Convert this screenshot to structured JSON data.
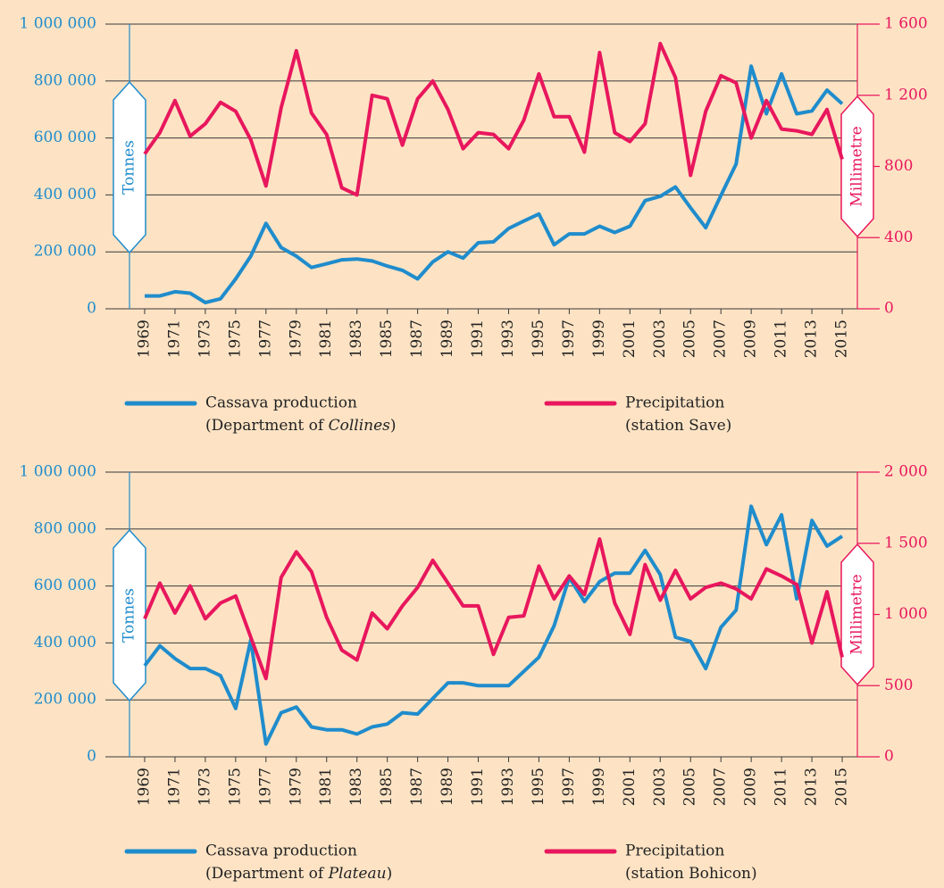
{
  "chart_data": [
    {
      "type": "line",
      "ylabel": "Tonnes",
      "y2label": "Millimetre",
      "x": [
        1969,
        1970,
        1971,
        1972,
        1973,
        1974,
        1975,
        1976,
        1977,
        1978,
        1979,
        1980,
        1981,
        1982,
        1983,
        1984,
        1985,
        1986,
        1987,
        1988,
        1989,
        1990,
        1991,
        1992,
        1993,
        1994,
        1995,
        1996,
        1997,
        1998,
        1999,
        2000,
        2001,
        2002,
        2003,
        2004,
        2005,
        2006,
        2007,
        2008,
        2009,
        2010,
        2011,
        2012,
        2013,
        2014,
        2015
      ],
      "xlim": [
        1968,
        2016
      ],
      "xticks": [
        1969,
        1971,
        1973,
        1975,
        1977,
        1979,
        1981,
        1983,
        1985,
        1987,
        1989,
        1991,
        1993,
        1995,
        1997,
        1999,
        2001,
        2003,
        2005,
        2007,
        2009,
        2011,
        2013,
        2015
      ],
      "ylim": [
        0,
        1000000
      ],
      "yticks": [
        0,
        {
          "value": 200000,
          "label": "200 000"
        },
        {
          "value": 400000,
          "label": "400 000"
        },
        {
          "value": 600000,
          "label": "600 000"
        },
        {
          "value": 800000,
          "label": "800 000"
        },
        {
          "value": 1000000,
          "label": "1 000 000"
        }
      ],
      "y2lim": [
        0,
        1600
      ],
      "y2ticks": [
        0,
        400,
        800,
        {
          "value": 1200,
          "label": "1 200"
        },
        {
          "value": 1600,
          "label": "1 600"
        }
      ],
      "grid": true,
      "series": [
        {
          "name": "Cassava production",
          "note": [
            {
              "text": "(Department of "
            },
            {
              "text": "Collines",
              "italic": true
            },
            {
              "text": ")"
            }
          ],
          "color": "#1f8ccc",
          "values": [
            45000,
            45000,
            60000,
            55000,
            22000,
            35000,
            105000,
            185000,
            300000,
            215000,
            185000,
            145000,
            158000,
            172000,
            175000,
            168000,
            150000,
            135000,
            105000,
            165000,
            200000,
            178000,
            232000,
            235000,
            282000,
            308000,
            333000,
            225000,
            263000,
            263000,
            290000,
            268000,
            290000,
            380000,
            395000,
            428000,
            355000,
            285000,
            398000,
            508000,
            852000,
            685000,
            825000,
            685000,
            695000,
            768000,
            720000
          ]
        },
        {
          "name": "Precipitation",
          "note": [
            {
              "text": "(station Save)"
            }
          ],
          "color": "#e8175d",
          "axis": "y2",
          "values": [
            870,
            990,
            1170,
            970,
            1040,
            1160,
            1110,
            950,
            690,
            1130,
            1450,
            1100,
            980,
            680,
            640,
            1200,
            1180,
            920,
            1180,
            1280,
            1120,
            900,
            990,
            980,
            900,
            1060,
            1320,
            1080,
            1080,
            880,
            1440,
            990,
            940,
            1040,
            1490,
            1300,
            750,
            1110,
            1310,
            1270,
            960,
            1170,
            1010,
            1000,
            980,
            1120,
            840
          ]
        }
      ]
    },
    {
      "type": "line",
      "ylabel": "Tonnes",
      "y2label": "Millimetre",
      "x": [
        1969,
        1970,
        1971,
        1972,
        1973,
        1974,
        1975,
        1976,
        1977,
        1978,
        1979,
        1980,
        1981,
        1982,
        1983,
        1984,
        1985,
        1986,
        1987,
        1988,
        1989,
        1990,
        1991,
        1992,
        1993,
        1994,
        1995,
        1996,
        1997,
        1998,
        1999,
        2000,
        2001,
        2002,
        2003,
        2004,
        2005,
        2006,
        2007,
        2008,
        2009,
        2010,
        2011,
        2012,
        2013,
        2014,
        2015
      ],
      "xlim": [
        1968,
        2016
      ],
      "xticks": [
        1969,
        1971,
        1973,
        1975,
        1977,
        1979,
        1981,
        1983,
        1985,
        1987,
        1989,
        1991,
        1993,
        1995,
        1997,
        1999,
        2001,
        2003,
        2005,
        2007,
        2009,
        2011,
        2013,
        2015
      ],
      "ylim": [
        0,
        1000000
      ],
      "yticks": [
        0,
        {
          "value": 200000,
          "label": "200 000"
        },
        {
          "value": 400000,
          "label": "400 000"
        },
        {
          "value": 600000,
          "label": "600 000"
        },
        {
          "value": 800000,
          "label": "800 000"
        },
        {
          "value": 1000000,
          "label": "1 000 000"
        }
      ],
      "y2lim": [
        0,
        2000
      ],
      "y2ticks": [
        0,
        500,
        {
          "value": 1000,
          "label": "1 000"
        },
        {
          "value": 1500,
          "label": "1 500"
        },
        {
          "value": 2000,
          "label": "2 000"
        }
      ],
      "grid": true,
      "series": [
        {
          "name": "Cassava production",
          "note": [
            {
              "text": "(Department of "
            },
            {
              "text": "Plateau",
              "italic": true
            },
            {
              "text": ")"
            }
          ],
          "color": "#1f8ccc",
          "values": [
            320000,
            390000,
            345000,
            310000,
            310000,
            285000,
            170000,
            410000,
            45000,
            155000,
            175000,
            105000,
            95000,
            95000,
            80000,
            105000,
            115000,
            155000,
            150000,
            205000,
            260000,
            260000,
            250000,
            250000,
            250000,
            300000,
            350000,
            460000,
            630000,
            545000,
            615000,
            645000,
            645000,
            725000,
            640000,
            420000,
            405000,
            310000,
            455000,
            515000,
            880000,
            745000,
            850000,
            555000,
            830000,
            740000,
            775000
          ]
        },
        {
          "name": "Precipitation",
          "note": [
            {
              "text": "(station Bohicon)"
            }
          ],
          "color": "#e8175d",
          "axis": "y2",
          "values": [
            970,
            1220,
            1010,
            1200,
            970,
            1080,
            1130,
            840,
            550,
            1260,
            1440,
            1300,
            980,
            750,
            680,
            1010,
            900,
            1060,
            1190,
            1380,
            1220,
            1060,
            1060,
            720,
            980,
            990,
            1340,
            1110,
            1270,
            1140,
            1530,
            1080,
            860,
            1350,
            1100,
            1310,
            1110,
            1190,
            1220,
            1180,
            1110,
            1320,
            1270,
            1210,
            800,
            1160,
            700
          ]
        }
      ]
    }
  ]
}
